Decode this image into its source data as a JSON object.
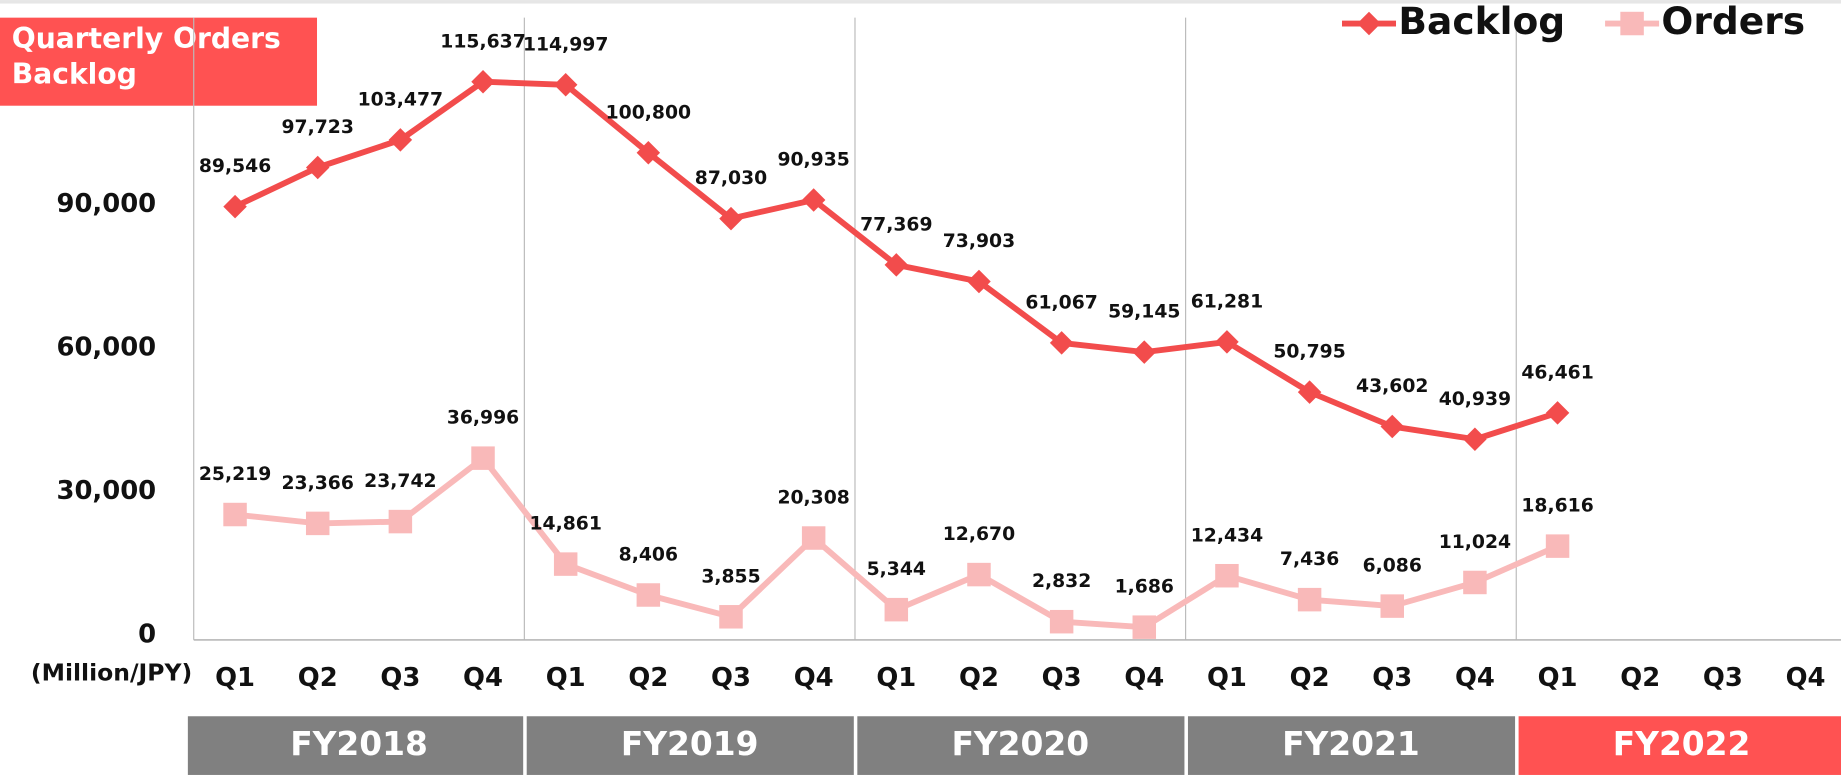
{
  "chart_data": {
    "type": "line",
    "title": "Quarterly Orders Backlog",
    "x_label": "(Million/JPY)",
    "categories": [
      "Q1",
      "Q2",
      "Q3",
      "Q4",
      "Q1",
      "Q2",
      "Q3",
      "Q4",
      "Q1",
      "Q2",
      "Q3",
      "Q4",
      "Q1",
      "Q2",
      "Q3",
      "Q4",
      "Q1",
      "Q2",
      "Q3",
      "Q4"
    ],
    "groups": [
      {
        "name": "FY2018",
        "color": "#808080"
      },
      {
        "name": "FY2019",
        "color": "#808080"
      },
      {
        "name": "FY2020",
        "color": "#808080"
      },
      {
        "name": "FY2021",
        "color": "#808080"
      },
      {
        "name": "FY2022",
        "color": "#ff5252"
      }
    ],
    "series": [
      {
        "name": "Backlog",
        "color": "#f24c4c",
        "marker": "diamond",
        "values": [
          89546,
          97723,
          103477,
          115637,
          114997,
          100800,
          87030,
          90935,
          77369,
          73903,
          61067,
          59145,
          61281,
          50795,
          43602,
          40939,
          46461,
          null,
          null,
          null
        ],
        "value_labels": [
          "89,546",
          "97,723",
          "103,477",
          "115,637",
          "114,997",
          "100,800",
          "87,030",
          "90,935",
          "77,369",
          "73,903",
          "61,067",
          "59,145",
          "61,281",
          "50,795",
          "43,602",
          "40,939",
          "46,461",
          null,
          null,
          null
        ]
      },
      {
        "name": "Orders",
        "color": "#f9b9b9",
        "marker": "square",
        "values": [
          25219,
          23366,
          23742,
          36996,
          14861,
          8406,
          3855,
          20308,
          5344,
          12670,
          2832,
          1686,
          12434,
          7436,
          6086,
          11024,
          18616,
          null,
          null,
          null
        ],
        "value_labels": [
          "25,219",
          "23,366",
          "23,742",
          "36,996",
          "14,861",
          "8,406",
          "3,855",
          "20,308",
          "5,344",
          "12,670",
          "2,832",
          "1,686",
          "12,434",
          "7,436",
          "6,086",
          "11,024",
          "18,616",
          null,
          null,
          null
        ]
      }
    ],
    "ylim": [
      0,
      130000
    ],
    "yticks": [
      0,
      {
        "value": 30000,
        "label": "30,000"
      },
      {
        "value": 60000,
        "label": "60,000"
      },
      {
        "value": 90000,
        "label": "90,000"
      }
    ],
    "grid": false,
    "legend": "top-right"
  }
}
